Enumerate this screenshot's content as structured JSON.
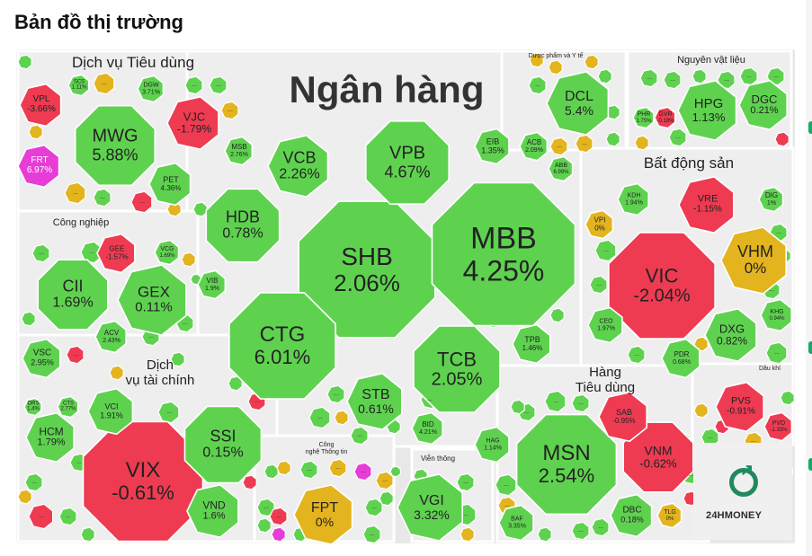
{
  "page": {
    "title": "Bản đồ thị trường"
  },
  "colors": {
    "up": "#5ed24f",
    "down": "#ee3b52",
    "flat": "#e3b41e",
    "ceiling": "#e83cd6",
    "sector_bg": "#eeeeee"
  },
  "sectors": [
    {
      "id": "tieu-dung",
      "name": "Dịch vụ Tiêu dùng"
    },
    {
      "id": "ngan-hang",
      "name": "Ngân hàng"
    },
    {
      "id": "duoc-pham",
      "name": "Dược phẩm và Y tế"
    },
    {
      "id": "nguyen-vat-lieu",
      "name": "Nguyên vật liệu"
    },
    {
      "id": "bat-dong-san",
      "name": "Bất động sản"
    },
    {
      "id": "cong-nghiep",
      "name": "Công nghiệp"
    },
    {
      "id": "tai-chinh",
      "name": "Dịch\nvụ tài chính"
    },
    {
      "id": "hang-tieu-dung",
      "name": "Hàng\nTiêu dùng"
    },
    {
      "id": "cong-nghe",
      "name": "Công\nnghệ Thông tin"
    },
    {
      "id": "vien-thong",
      "name": "Viễn thông"
    },
    {
      "id": "dau-khi",
      "name": "Dầu khí"
    }
  ],
  "tiles": [
    {
      "symbol": "MWG",
      "change": "5.88%",
      "status": "up"
    },
    {
      "symbol": "VPL",
      "change": "-3.66%",
      "status": "down"
    },
    {
      "symbol": "VJC",
      "change": "-1.79%",
      "status": "down"
    },
    {
      "symbol": "FRT",
      "change": "6.97%",
      "status": "ceiling"
    },
    {
      "symbol": "PET",
      "change": "4.36%",
      "status": "up"
    },
    {
      "symbol": "SCS",
      "change": "1.11%",
      "status": "up"
    },
    {
      "symbol": "DGW",
      "change": "3.71%",
      "status": "up"
    },
    {
      "symbol": "SHB",
      "change": "2.06%",
      "status": "up"
    },
    {
      "symbol": "MBB",
      "change": "4.25%",
      "status": "up"
    },
    {
      "symbol": "VPB",
      "change": "4.67%",
      "status": "up"
    },
    {
      "symbol": "VCB",
      "change": "2.26%",
      "status": "up"
    },
    {
      "symbol": "HDB",
      "change": "0.78%",
      "status": "up"
    },
    {
      "symbol": "CTG",
      "change": "6.01%",
      "status": "up"
    },
    {
      "symbol": "TCB",
      "change": "2.05%",
      "status": "up"
    },
    {
      "symbol": "STB",
      "change": "0.61%",
      "status": "up"
    },
    {
      "symbol": "MSB",
      "change": "2.76%",
      "status": "up"
    },
    {
      "symbol": "EIB",
      "change": "1.35%",
      "status": "up"
    },
    {
      "symbol": "ACB",
      "change": "2.09%",
      "status": "up"
    },
    {
      "symbol": "ABB",
      "change": "6.99%",
      "status": "up"
    },
    {
      "symbol": "TPB",
      "change": "1.46%",
      "status": "up"
    },
    {
      "symbol": "VIB",
      "change": "1.9%",
      "status": "up"
    },
    {
      "symbol": "BID",
      "change": "4.21%",
      "status": "up"
    },
    {
      "symbol": "DCL",
      "change": "5.4%",
      "status": "up"
    },
    {
      "symbol": "HPG",
      "change": "1.13%",
      "status": "up"
    },
    {
      "symbol": "DGC",
      "change": "0.21%",
      "status": "up"
    },
    {
      "symbol": "PHR",
      "change": "1.75%",
      "status": "up"
    },
    {
      "symbol": "GVR",
      "change": "-0.18%",
      "status": "down"
    },
    {
      "symbol": "VIC",
      "change": "-2.04%",
      "status": "down"
    },
    {
      "symbol": "VHM",
      "change": "0%",
      "status": "flat"
    },
    {
      "symbol": "VRE",
      "change": "-1.15%",
      "status": "down"
    },
    {
      "symbol": "KDH",
      "change": "1.94%",
      "status": "up"
    },
    {
      "symbol": "DIG",
      "change": "1%",
      "status": "up"
    },
    {
      "symbol": "VPI",
      "change": "0%",
      "status": "flat"
    },
    {
      "symbol": "DXG",
      "change": "0.82%",
      "status": "up"
    },
    {
      "symbol": "CEO",
      "change": "1.97%",
      "status": "up"
    },
    {
      "symbol": "PDR",
      "change": "0.68%",
      "status": "up"
    },
    {
      "symbol": "KHG",
      "change": "0.94%",
      "status": "up"
    },
    {
      "symbol": "CII",
      "change": "1.69%",
      "status": "up"
    },
    {
      "symbol": "GEX",
      "change": "0.11%",
      "status": "up"
    },
    {
      "symbol": "GEE",
      "change": "-1.57%",
      "status": "down"
    },
    {
      "symbol": "VCG",
      "change": "1.69%",
      "status": "up"
    },
    {
      "symbol": "ACV",
      "change": "2.43%",
      "status": "up"
    },
    {
      "symbol": "VSC",
      "change": "2.95%",
      "status": "up"
    },
    {
      "symbol": "VIX",
      "change": "-0.61%",
      "status": "down"
    },
    {
      "symbol": "SSI",
      "change": "0.15%",
      "status": "up"
    },
    {
      "symbol": "HCM",
      "change": "1.79%",
      "status": "up"
    },
    {
      "symbol": "VCI",
      "change": "1.91%",
      "status": "up"
    },
    {
      "symbol": "VND",
      "change": "1.6%",
      "status": "up"
    },
    {
      "symbol": "CTS",
      "change": "2.77%",
      "status": "up"
    },
    {
      "symbol": "ORS",
      "change": "1.4%",
      "status": "up"
    },
    {
      "symbol": "MSN",
      "change": "2.54%",
      "status": "up"
    },
    {
      "symbol": "VNM",
      "change": "-0.62%",
      "status": "down"
    },
    {
      "symbol": "SAB",
      "change": "-0.95%",
      "status": "down"
    },
    {
      "symbol": "HAG",
      "change": "1.14%",
      "status": "up"
    },
    {
      "symbol": "DBC",
      "change": "0.18%",
      "status": "up"
    },
    {
      "symbol": "BAF",
      "change": "3.35%",
      "status": "up"
    },
    {
      "symbol": "TLG",
      "change": "0%",
      "status": "flat"
    },
    {
      "symbol": "FPT",
      "change": "0%",
      "status": "flat"
    },
    {
      "symbol": "VGI",
      "change": "3.32%",
      "status": "up"
    },
    {
      "symbol": "PVS",
      "change": "-0.91%",
      "status": "down"
    },
    {
      "symbol": "PVD",
      "change": "-1.33%",
      "status": "down"
    }
  ],
  "placeholder_label": "...",
  "brand": {
    "name": "24HMONEY"
  }
}
